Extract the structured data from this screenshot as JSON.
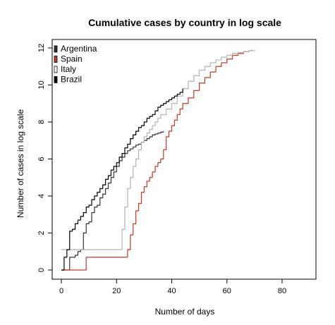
{
  "chart_data": {
    "type": "line",
    "title": "Cumulative cases by country in log scale",
    "xlabel": "Number of days",
    "ylabel": "Number of cases in log scale",
    "xlim": [
      0,
      90
    ],
    "ylim": [
      0,
      12
    ],
    "x_ticks": [
      0,
      20,
      40,
      60,
      80
    ],
    "y_ticks": [
      0,
      2,
      4,
      6,
      8,
      10,
      12
    ],
    "x_tick_labels": [
      "0",
      "20",
      "40",
      "60",
      "80"
    ],
    "y_tick_labels": [
      "0",
      "2",
      "4",
      "6",
      "8",
      "10",
      "12"
    ],
    "grid": false,
    "legend_position": "top-left",
    "series": [
      {
        "name": "Argentina",
        "color": "#333333",
        "x": [
          0,
          1,
          2,
          3,
          4,
          5,
          6,
          7,
          8,
          9,
          10,
          11,
          12,
          13,
          14,
          15,
          16,
          17,
          18,
          19,
          20,
          21,
          22,
          23,
          24,
          25,
          26,
          27,
          28,
          29,
          30,
          31,
          32,
          33,
          34,
          35,
          36,
          37
        ],
        "y": [
          0,
          0,
          0,
          0.69,
          0.69,
          0.8,
          1.0,
          1.1,
          2.0,
          2.5,
          2.6,
          3.1,
          3.4,
          3.5,
          3.9,
          4.1,
          4.4,
          4.7,
          5.0,
          5.3,
          5.6,
          5.9,
          6.1,
          6.3,
          6.45,
          6.55,
          6.65,
          6.75,
          6.8,
          6.9,
          7.0,
          7.1,
          7.2,
          7.3,
          7.35,
          7.4,
          7.45,
          7.5
        ]
      },
      {
        "name": "Spain",
        "color": "#c0392b",
        "x": [
          0,
          8,
          9,
          12,
          16,
          20,
          23,
          24,
          25,
          26,
          27,
          28,
          29,
          30,
          31,
          32,
          33,
          34,
          35,
          36,
          37,
          38,
          39,
          40,
          41,
          42,
          43,
          44,
          46,
          48,
          50,
          52,
          54,
          56,
          58,
          60,
          62,
          64,
          66,
          68,
          69
        ],
        "y": [
          0,
          0,
          0.69,
          0.69,
          0.69,
          0.69,
          0.69,
          1.1,
          1.9,
          2.5,
          3.2,
          3.6,
          4.2,
          4.5,
          4.8,
          5.0,
          5.3,
          5.6,
          5.8,
          6.0,
          6.5,
          7.2,
          7.5,
          7.8,
          8.1,
          8.4,
          8.7,
          9.0,
          9.3,
          9.7,
          10.1,
          10.4,
          10.7,
          11.0,
          11.2,
          11.4,
          11.6,
          11.7,
          11.8,
          11.85,
          11.9
        ]
      },
      {
        "name": "Italy",
        "color": "#b3b3b3",
        "x": [
          0,
          21,
          22,
          23,
          24,
          25,
          26,
          27,
          28,
          29,
          30,
          31,
          32,
          33,
          34,
          35,
          36,
          38,
          40,
          42,
          44,
          46,
          48,
          50,
          52,
          54,
          56,
          58,
          60,
          62,
          64,
          66,
          68,
          70
        ],
        "y": [
          1.1,
          1.1,
          2.2,
          3.4,
          4.4,
          5.0,
          5.6,
          6.0,
          6.5,
          6.9,
          7.2,
          7.4,
          7.6,
          7.8,
          8.0,
          8.2,
          8.4,
          8.7,
          9.0,
          9.4,
          9.8,
          10.2,
          10.5,
          10.8,
          11.0,
          11.2,
          11.35,
          11.5,
          11.6,
          11.7,
          11.75,
          11.8,
          11.85,
          11.9
        ]
      },
      {
        "name": "Brazil",
        "color": "#000000",
        "x": [
          0,
          1,
          2,
          3,
          4,
          5,
          6,
          7,
          8,
          9,
          10,
          11,
          12,
          13,
          14,
          15,
          16,
          17,
          18,
          19,
          20,
          21,
          22,
          23,
          24,
          25,
          26,
          27,
          28,
          29,
          30,
          31,
          32,
          33,
          34,
          35,
          36,
          37,
          38,
          39,
          40,
          41,
          42,
          43,
          44
        ],
        "y": [
          0,
          0.69,
          1.1,
          2.1,
          2.2,
          2.5,
          2.7,
          2.9,
          3.1,
          3.4,
          3.5,
          3.8,
          4.0,
          4.2,
          4.4,
          4.6,
          4.9,
          5.1,
          5.4,
          5.6,
          5.8,
          6.1,
          6.3,
          6.6,
          6.8,
          7.1,
          7.3,
          7.5,
          7.7,
          7.8,
          8.0,
          8.2,
          8.3,
          8.4,
          8.6,
          8.8,
          8.9,
          9.0,
          9.1,
          9.2,
          9.3,
          9.4,
          9.5,
          9.6,
          9.8
        ]
      }
    ]
  }
}
